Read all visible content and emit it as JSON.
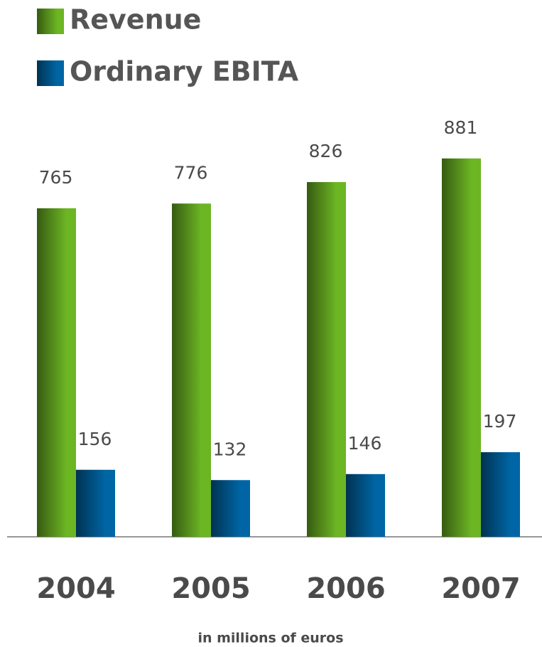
{
  "chart_data": {
    "type": "bar",
    "categories": [
      "2004",
      "2005",
      "2006",
      "2007"
    ],
    "series": [
      {
        "name": "Revenue",
        "color": "#6cb523",
        "values": [
          765,
          776,
          826,
          881
        ]
      },
      {
        "name": "Ordinary EBITA",
        "color": "#0065a4",
        "values": [
          156,
          132,
          146,
          197
        ]
      }
    ],
    "ylim": [
      0,
      1000
    ],
    "note": "in millions of euros"
  }
}
